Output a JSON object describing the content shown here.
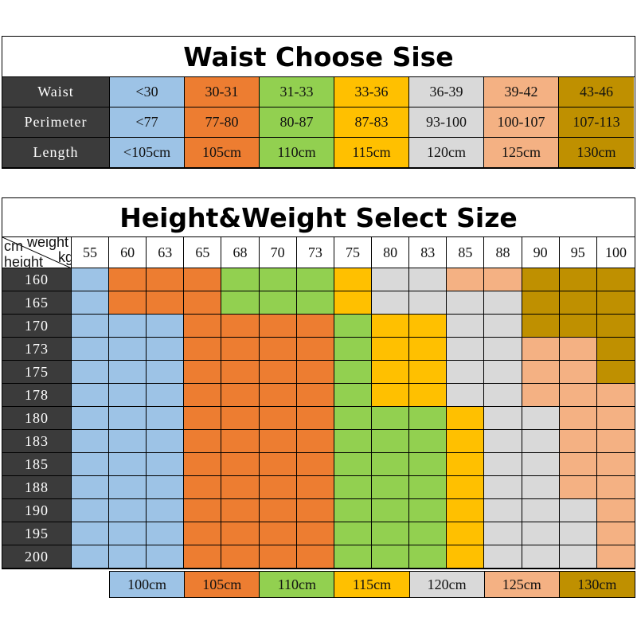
{
  "colors": {
    "B": "#9dc3e6",
    "O": "#ed7d31",
    "G": "#92d050",
    "Y": "#ffc000",
    "L": "#d9d9d9",
    "P": "#f4b183",
    "K": "#bf9000"
  },
  "waist_table": {
    "title": "Waist Choose Sise",
    "color_order": [
      "B",
      "O",
      "G",
      "Y",
      "L",
      "P",
      "K"
    ],
    "rows": [
      {
        "label": "Waist",
        "values": [
          "<30",
          "30-31",
          "31-33",
          "33-36",
          "36-39",
          "39-42",
          "43-46"
        ]
      },
      {
        "label": "Perimeter",
        "values": [
          "<77",
          "77-80",
          "80-87",
          "87-83",
          "93-100",
          "100-107",
          "107-113"
        ]
      },
      {
        "label": "Length",
        "values": [
          "<105cm",
          "105cm",
          "110cm",
          "115cm",
          "120cm",
          "125cm",
          "130cm"
        ]
      }
    ]
  },
  "size_table": {
    "title": "Height&Weight Select Size",
    "corner": {
      "cm": "cm",
      "weight": "weight",
      "kg": "kg",
      "height": "height"
    },
    "weights": [
      "55",
      "60",
      "63",
      "65",
      "68",
      "70",
      "73",
      "75",
      "80",
      "83",
      "85",
      "88",
      "90",
      "95",
      "100"
    ],
    "rows": [
      {
        "height": "160",
        "cells": "BOOOGGGYLLPPKKK"
      },
      {
        "height": "165",
        "cells": "BOOOGGGYLLLLKKK"
      },
      {
        "height": "170",
        "cells": "BBBOOOOGYYLLKKK"
      },
      {
        "height": "173",
        "cells": "BBBOOOOGYYLLPPK"
      },
      {
        "height": "175",
        "cells": "BBBOOOOGYYLLPPK"
      },
      {
        "height": "178",
        "cells": "BBBOOOOGYYLLPPP"
      },
      {
        "height": "180",
        "cells": "BBBOOOOGGGYLLPP"
      },
      {
        "height": "183",
        "cells": "BBBOOOOGGGYLLPP"
      },
      {
        "height": "185",
        "cells": "BBBOOOOGGGYLLPP"
      },
      {
        "height": "188",
        "cells": "BBBOOOOGGGYLLPP"
      },
      {
        "height": "190",
        "cells": "BBBOOOOGGGYLLLP"
      },
      {
        "height": "195",
        "cells": "BBBOOOOGGGYLLLP"
      },
      {
        "height": "200",
        "cells": "BBBOOOOGGGYLLLP"
      }
    ]
  },
  "legend": [
    {
      "label": "100cm",
      "color": "B"
    },
    {
      "label": "105cm",
      "color": "O"
    },
    {
      "label": "110cm",
      "color": "G"
    },
    {
      "label": "115cm",
      "color": "Y"
    },
    {
      "label": "120cm",
      "color": "L"
    },
    {
      "label": "125cm",
      "color": "P"
    },
    {
      "label": "130cm",
      "color": "K"
    }
  ]
}
